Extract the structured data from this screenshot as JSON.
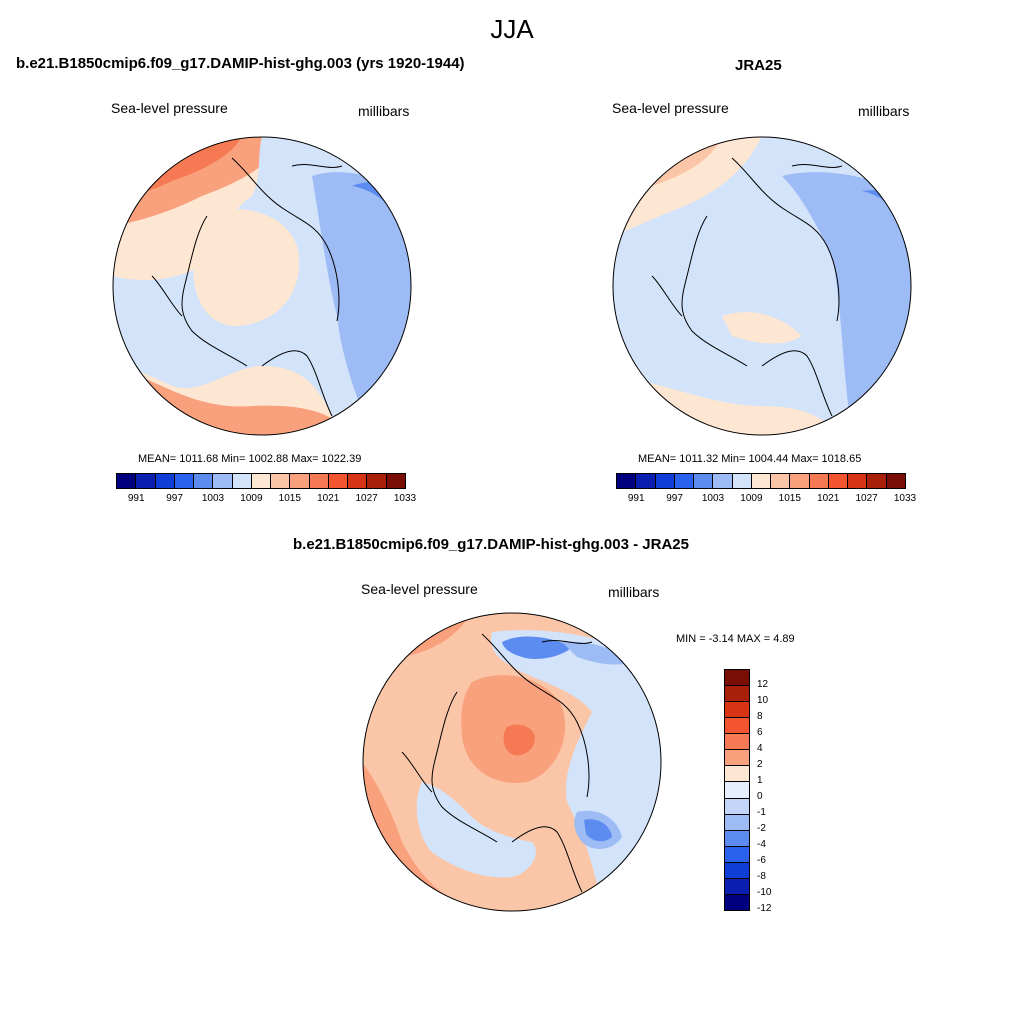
{
  "title": "JJA",
  "panels": [
    {
      "id": "model",
      "title": "b.e21.B1850cmip6.f09_g17.DAMIP-hist-ghg.003 (yrs 1920-1944)",
      "variable": "Sea-level pressure",
      "units": "millibars",
      "stats": "MEAN= 1011.68  Min= 1002.88  Max= 1022.39"
    },
    {
      "id": "obs",
      "title": "JRA25",
      "variable": "Sea-level pressure",
      "units": "millibars",
      "stats": "MEAN= 1011.32  Min= 1004.44  Max= 1018.65"
    },
    {
      "id": "diff",
      "title": "b.e21.B1850cmip6.f09_g17.DAMIP-hist-ghg.003 - JRA25",
      "variable": "Sea-level pressure",
      "units": "millibars",
      "stats": "MIN =  -3.14 MAX =   4.89"
    }
  ],
  "colorbar_abs": {
    "colors": [
      "#00007f",
      "#0a1fb0",
      "#0f3dd8",
      "#2a62ee",
      "#5d8cf0",
      "#9dbcf5",
      "#d3e3fa",
      "#fde6d2",
      "#fbc6a8",
      "#f9a07d",
      "#f57a54",
      "#f25530",
      "#d73415",
      "#a81f0a",
      "#7a0d04"
    ],
    "tick_labels": [
      "991",
      "997",
      "1003",
      "1009",
      "1015",
      "1021",
      "1027",
      "1033"
    ]
  },
  "colorbar_diff": {
    "colors": [
      "#7a0d04",
      "#a81f0a",
      "#d73415",
      "#f25530",
      "#f57a54",
      "#f9a07d",
      "#fde6d2",
      "#e6efff",
      "#c3d6fa",
      "#9dbcf5",
      "#5d8cf0",
      "#2a62ee",
      "#0f3dd8",
      "#0a1fb0",
      "#00007f"
    ],
    "tick_labels": [
      "12",
      "10",
      "8",
      "6",
      "4",
      "2",
      "1",
      "0",
      "-1",
      "-2",
      "-4",
      "-6",
      "-8",
      "-10",
      "-12"
    ]
  }
}
